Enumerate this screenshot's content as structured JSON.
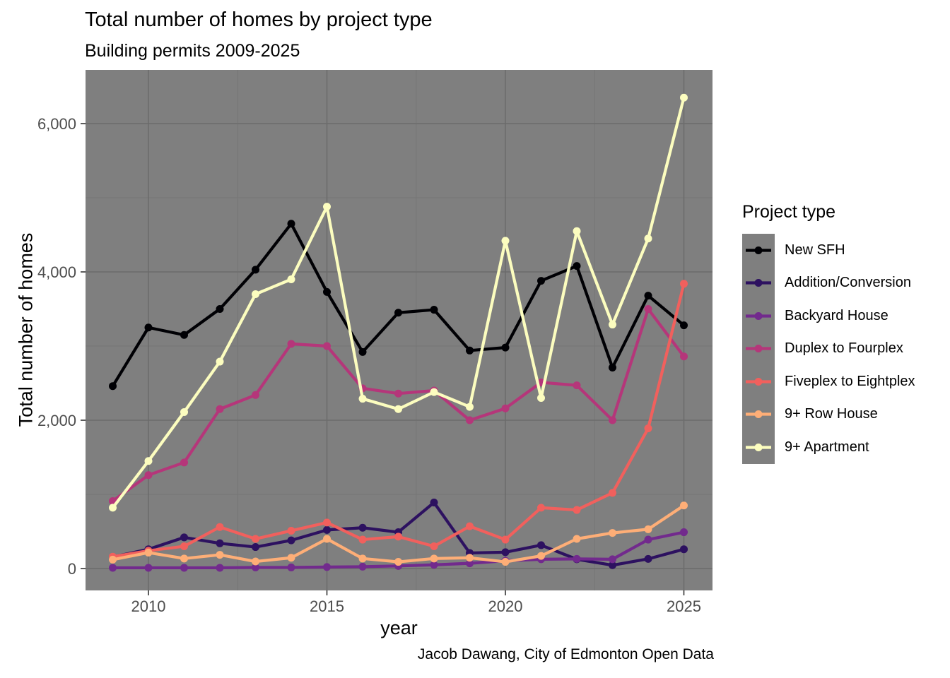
{
  "title": "Total number of homes by project type",
  "subtitle": "Building permits 2009-2025",
  "caption": "Jacob Dawang, City of Edmonton Open Data",
  "x_axis": {
    "label": "year",
    "ticks": [
      {
        "v": 2010,
        "label": "2010"
      },
      {
        "v": 2015,
        "label": "2015"
      },
      {
        "v": 2020,
        "label": "2020"
      },
      {
        "v": 2025,
        "label": "2025"
      }
    ]
  },
  "y_axis": {
    "label": "Total number of homes",
    "ticks": [
      {
        "v": 0,
        "label": "0"
      },
      {
        "v": 2000,
        "label": "2,000"
      },
      {
        "v": 4000,
        "label": "4,000"
      },
      {
        "v": 6000,
        "label": "6,000"
      }
    ]
  },
  "legend": {
    "title": "Project type",
    "position": "right"
  },
  "chart_data": {
    "type": "line",
    "title": "Total number of homes by project type",
    "subtitle": "Building permits 2009-2025",
    "xlabel": "year",
    "ylabel": "Total number of homes",
    "ylim": [
      0,
      6700
    ],
    "xlim": [
      2009,
      2025
    ],
    "grid": {
      "major_y": [
        0,
        2000,
        4000,
        6000
      ],
      "minor_y": [
        1000,
        3000,
        5000
      ],
      "major_x": [
        2010,
        2015,
        2020,
        2025
      ],
      "minor_x": [
        2012.5,
        2017.5,
        2022.5
      ]
    },
    "panel_colors": {
      "bg": "#7F7F7F",
      "grid_major": "#6C6C6C",
      "grid_minor": "#767676",
      "tick_mark": "#333333",
      "tick_label": "#4D4D4D"
    },
    "x": [
      2009,
      2010,
      2011,
      2012,
      2013,
      2014,
      2015,
      2016,
      2017,
      2018,
      2019,
      2020,
      2021,
      2022,
      2023,
      2024,
      2025
    ],
    "series": [
      {
        "name": "New SFH",
        "slug": "new-sfh",
        "color": "#000004",
        "values": [
          2460,
          3250,
          3150,
          3500,
          4030,
          4650,
          3730,
          2920,
          3450,
          3490,
          2940,
          2980,
          3880,
          4080,
          2710,
          3680,
          3280
        ]
      },
      {
        "name": "Addition/Conversion",
        "slug": "addition-conversion",
        "color": "#2D1160",
        "values": [
          155,
          260,
          420,
          340,
          290,
          380,
          520,
          550,
          490,
          890,
          210,
          220,
          315,
          125,
          45,
          130,
          260
        ]
      },
      {
        "name": "Backyard House",
        "slug": "backyard-house",
        "color": "#722A8D",
        "values": [
          10,
          10,
          10,
          10,
          15,
          15,
          20,
          25,
          35,
          50,
          70,
          105,
          125,
          130,
          125,
          390,
          490
        ]
      },
      {
        "name": "Duplex to Fourplex",
        "slug": "duplex-to-fourplex",
        "color": "#B5367A",
        "values": [
          910,
          1260,
          1430,
          2150,
          2340,
          3030,
          3000,
          2430,
          2360,
          2400,
          2000,
          2160,
          2510,
          2470,
          2000,
          3500,
          2860
        ]
      },
      {
        "name": "Fiveplex to Eightplex",
        "slug": "fiveplex-to-eightplex",
        "color": "#F1605D",
        "values": [
          160,
          240,
          300,
          560,
          400,
          510,
          620,
          390,
          430,
          300,
          570,
          390,
          820,
          790,
          1020,
          1890,
          3840
        ]
      },
      {
        "name": "9+ Row House",
        "slug": "row-house-9plus",
        "color": "#FEAE77",
        "values": [
          120,
          215,
          135,
          185,
          95,
          145,
          400,
          135,
          90,
          135,
          145,
          90,
          170,
          400,
          480,
          530,
          850
        ]
      },
      {
        "name": "9+ Apartment",
        "slug": "apartment-9plus",
        "color": "#FCFDBF",
        "values": [
          820,
          1450,
          2110,
          2790,
          3700,
          3900,
          4880,
          2290,
          2150,
          2380,
          2180,
          4420,
          2300,
          4550,
          3290,
          4450,
          6350
        ]
      }
    ],
    "legend_position": "right"
  }
}
